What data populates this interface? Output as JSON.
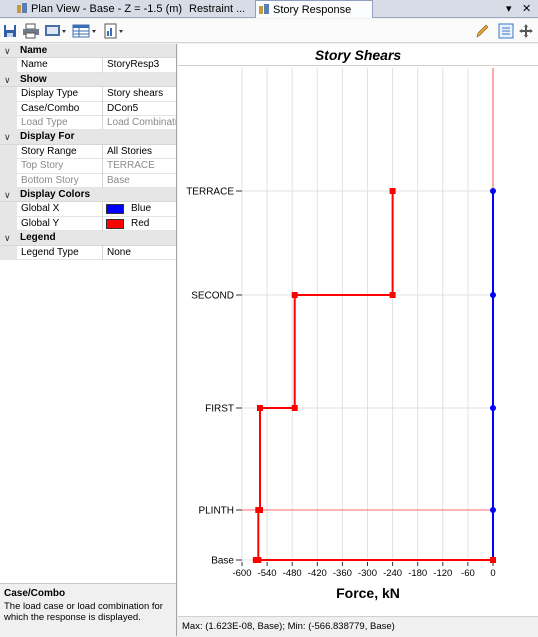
{
  "tabs": [
    {
      "label": "Plan View - Base - Z = -1.5 (m)",
      "active": false
    },
    {
      "label": "Restraint ...",
      "active": false
    },
    {
      "label": "Story Response",
      "active": true
    }
  ],
  "tab_controls": {
    "menu": "▾",
    "close": "✕"
  },
  "toolbar": {
    "left_icons": [
      "save-icon",
      "print-icon",
      "display-options-icon",
      "table-icon",
      "report-icon"
    ],
    "right_icons": [
      "pencil-icon",
      "list-icon",
      "pan-icon"
    ]
  },
  "properties": {
    "name_cat": "Name",
    "name_label": "Name",
    "name_value": "StoryResp3",
    "show_cat": "Show",
    "display_type_label": "Display Type",
    "display_type_value": "Story shears",
    "case_label": "Case/Combo",
    "case_value": "DCon5",
    "load_type_label": "Load Type",
    "load_type_value": "Load Combination",
    "display_for_cat": "Display For",
    "story_range_label": "Story Range",
    "story_range_value": "All Stories",
    "top_story_label": "Top Story",
    "top_story_value": "TERRACE",
    "bottom_story_label": "Bottom Story",
    "bottom_story_value": "Base",
    "display_colors_cat": "Display Colors",
    "global_x_label": "Global X",
    "global_x_value": "Blue",
    "global_x_color": "#0000ff",
    "global_y_label": "Global Y",
    "global_y_value": "Red",
    "global_y_color": "#ff0000",
    "legend_cat": "Legend",
    "legend_type_label": "Legend Type",
    "legend_type_value": "None"
  },
  "description": {
    "title": "Case/Combo",
    "text": "The load case or load combination for which the response is displayed."
  },
  "status": "Max: (1.623E-08, Base);   Min: (-566.838779, Base)",
  "chart_data": {
    "type": "line",
    "title": "Story Shears",
    "xlabel": "Force, kN",
    "ylabel": "",
    "xlim": [
      -600,
      0
    ],
    "x_ticks": [
      -600,
      -540,
      -480,
      -420,
      -360,
      -300,
      -240,
      -180,
      -120,
      -60,
      0
    ],
    "x_tick_labels": [
      "-600",
      "-540",
      "-480",
      "-420",
      "-360",
      "-300",
      "-240",
      "-180",
      "-120",
      "-60",
      "0"
    ],
    "stories": [
      "Base",
      "PLINTH",
      "FIRST",
      "SECOND",
      "TERRACE"
    ],
    "series": [
      {
        "name": "Global X",
        "color": "#0000ff",
        "step_points": [
          {
            "story": "TERRACE",
            "x": 0
          },
          {
            "story": "SECOND",
            "x": 0
          },
          {
            "story": "FIRST",
            "x": 0
          },
          {
            "story": "PLINTH",
            "x": 0
          },
          {
            "story": "Base",
            "x": 0
          }
        ]
      },
      {
        "name": "Global Y",
        "color": "#ff0000",
        "step_points": [
          {
            "story": "TERRACE",
            "x": -240
          },
          {
            "story": "SECOND",
            "x": -240
          },
          {
            "story": "SECOND",
            "x": -474
          },
          {
            "story": "FIRST",
            "x": -474
          },
          {
            "story": "FIRST",
            "x": -557
          },
          {
            "story": "PLINTH",
            "x": -557
          },
          {
            "story": "PLINTH",
            "x": -561
          },
          {
            "story": "Base",
            "x": -561
          },
          {
            "story": "Base",
            "x": -567
          },
          {
            "story": "Base",
            "x": 0
          }
        ]
      }
    ]
  }
}
